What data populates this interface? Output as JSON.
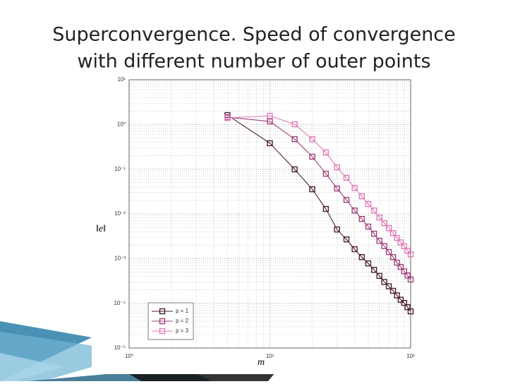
{
  "chart_data": {
    "type": "line",
    "title": [
      "Superconvergence. Speed of convergence",
      "with different number of outer points"
    ],
    "x_label": "m",
    "y_label": "‖e‖",
    "x": [
      5,
      10,
      15,
      20,
      25,
      30,
      35,
      40,
      45,
      50,
      55,
      60,
      65,
      70,
      75,
      80,
      85,
      90,
      95,
      100
    ],
    "series": [
      {
        "name": "p = 1",
        "color": "#4a1f33",
        "values": [
          1.62,
          0.38,
          0.099,
          0.0356,
          0.0129,
          0.00448,
          0.00269,
          0.00162,
          0.00108,
          0.00078,
          0.00056,
          0.00041,
          0.0003,
          0.00024,
          0.00019,
          0.00015,
          0.00012,
          0.000102,
          8.2e-05,
          6.6e-05
        ]
      },
      {
        "name": "p = 2",
        "color": "#a0407a",
        "values": [
          1.45,
          1.17,
          0.47,
          0.19,
          0.079,
          0.037,
          0.0206,
          0.0119,
          0.0077,
          0.0052,
          0.0036,
          0.0025,
          0.0019,
          0.0014,
          0.00108,
          0.00081,
          0.00065,
          0.00052,
          0.00042,
          0.00034
        ]
      },
      {
        "name": "p = 3",
        "color": "#e07ab8",
        "values": [
          1.4,
          1.56,
          1.01,
          0.47,
          0.236,
          0.11,
          0.064,
          0.038,
          0.0247,
          0.0166,
          0.0119,
          0.0083,
          0.0062,
          0.0048,
          0.0037,
          0.0029,
          0.0023,
          0.0019,
          0.0015,
          0.00125
        ]
      }
    ],
    "xlim": [
      1,
      100
    ],
    "ylim": [
      1e-05,
      10
    ],
    "xscale": "log",
    "yscale": "log",
    "xticks": [
      {
        "value": 1,
        "label": "10⁰"
      },
      {
        "value": 10,
        "label": "10¹"
      },
      {
        "value": 100,
        "label": "10²"
      }
    ],
    "yticks": [
      {
        "value": 1e-05,
        "label": "10⁻⁵"
      },
      {
        "value": 0.0001,
        "label": "10⁻⁴"
      },
      {
        "value": 0.001,
        "label": "10⁻³"
      },
      {
        "value": 0.01,
        "label": "10⁻²"
      },
      {
        "value": 0.1,
        "label": "10⁻¹"
      },
      {
        "value": 1,
        "label": "10⁰"
      },
      {
        "value": 10,
        "label": "10¹"
      }
    ],
    "grid": true,
    "legend": "lower left"
  }
}
